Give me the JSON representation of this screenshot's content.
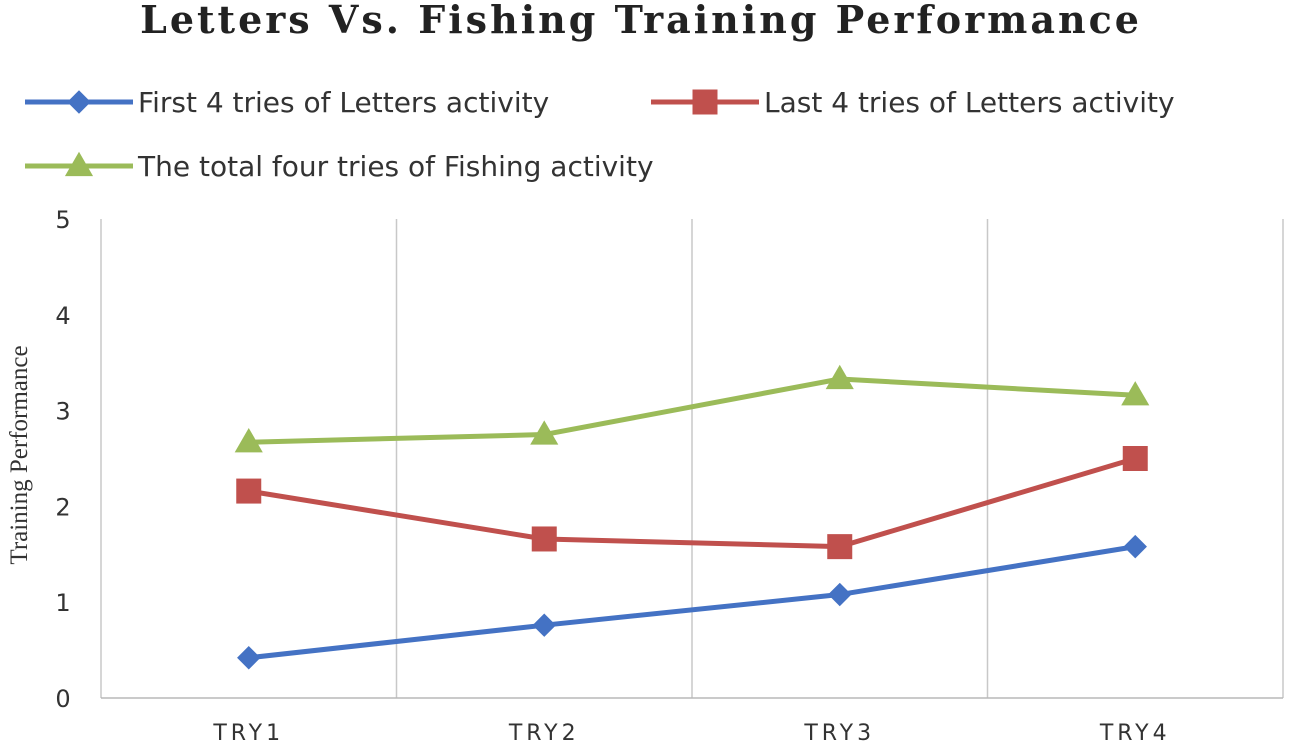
{
  "chart_data": {
    "type": "line",
    "title": "Letters Vs. Fishing Training Performance",
    "xlabel": "",
    "ylabel": "Training Performance",
    "categories": [
      "TRY1",
      "TRY2",
      "TRY3",
      "TRY4"
    ],
    "ylim": [
      0,
      5
    ],
    "yticks": [
      0,
      1,
      2,
      3,
      4,
      5
    ],
    "grid": "vertical",
    "legend_position": "top",
    "series": [
      {
        "name": "First 4 tries of Letters activity",
        "values": [
          0.42,
          0.76,
          1.08,
          1.58
        ],
        "color": "#4472C4",
        "marker": "diamond"
      },
      {
        "name": "Last 4 tries of Letters activity",
        "values": [
          2.16,
          1.66,
          1.58,
          2.5
        ],
        "color": "#C0504D",
        "marker": "square"
      },
      {
        "name": "The total four tries of Fishing activity",
        "values": [
          2.67,
          2.75,
          3.33,
          3.16
        ],
        "color": "#9BBB59",
        "marker": "triangle"
      }
    ]
  }
}
